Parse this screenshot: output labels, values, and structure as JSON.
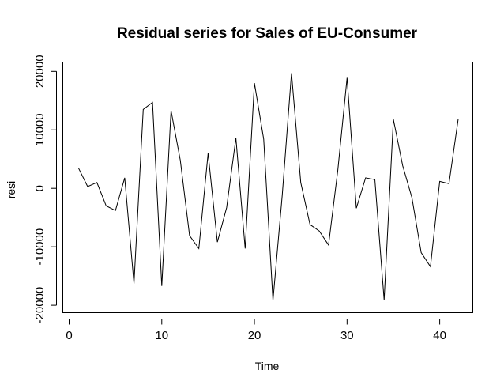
{
  "chart_data": {
    "type": "line",
    "title": "Residual series for Sales of EU-Consumer",
    "xlabel": "Time",
    "ylabel": "resi",
    "xlim": [
      0,
      42
    ],
    "ylim": [
      -20000,
      20000
    ],
    "x_ticks": [
      0,
      10,
      20,
      30,
      40
    ],
    "y_ticks": [
      -20000,
      -10000,
      0,
      10000,
      20000
    ],
    "grid": false,
    "legend": "none",
    "series": [
      {
        "color": "#000000",
        "x": [
          1,
          2,
          3,
          4,
          5,
          6,
          7,
          8,
          9,
          10,
          11,
          12,
          13,
          14,
          15,
          16,
          17,
          18,
          19,
          20,
          21,
          22,
          23,
          24,
          25,
          26,
          27,
          28,
          29,
          30,
          31,
          32,
          33,
          34,
          35,
          36,
          37,
          38,
          39,
          40,
          41,
          42
        ],
        "y": [
          3500,
          300,
          1000,
          -3000,
          -3800,
          1800,
          -16300,
          13500,
          14700,
          -16700,
          13300,
          4800,
          -8100,
          -10300,
          6000,
          -9200,
          -3300,
          8600,
          -10300,
          18000,
          8400,
          -19200,
          -1200,
          19700,
          1000,
          -6200,
          -7300,
          -9700,
          3100,
          18900,
          -3400,
          1800,
          1500,
          -19100,
          11800,
          3900,
          -1600,
          -11000,
          -13400,
          1200,
          800,
          11900
        ]
      }
    ]
  }
}
